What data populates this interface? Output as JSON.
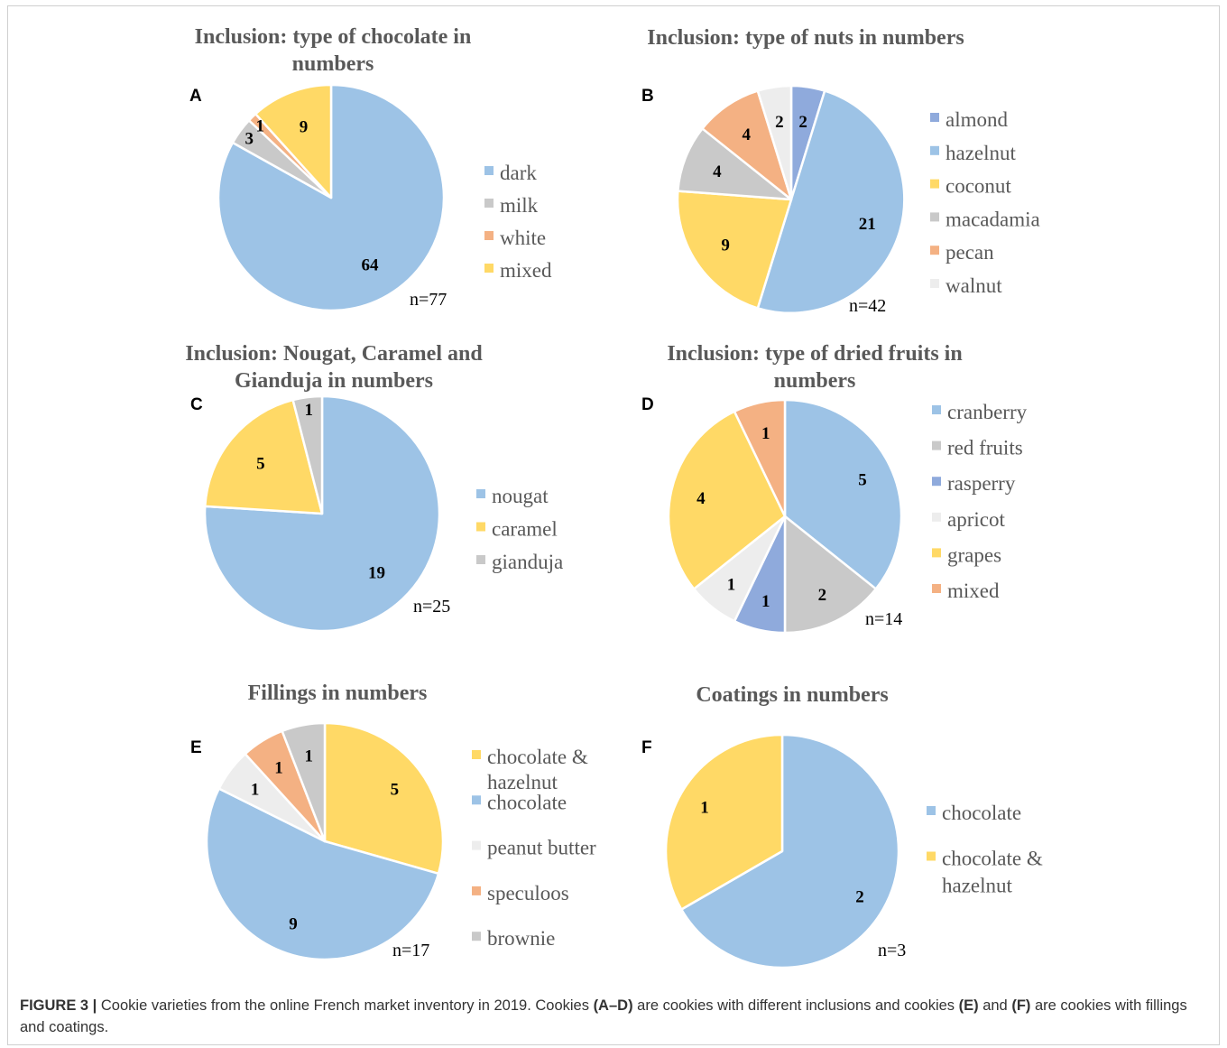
{
  "caption": {
    "label": "FIGURE 3 |",
    "text_1": " Cookie varieties from the online French market inventory in 2019. Cookies ",
    "ref_1": "(A–D)",
    "text_2": " are cookies with different inclusions and cookies ",
    "ref_2": "(E)",
    "text_3": " and ",
    "ref_3": "(F)",
    "text_4": " are cookies with fillings and coatings."
  },
  "colors": {
    "light_blue": "#9DC3E6",
    "grey": "#C9C9C9",
    "orange": "#F4B183",
    "yellow": "#FFD966",
    "blue": "#8FAADC",
    "white_grey": "#EDEDED",
    "title": "#595959"
  },
  "chart_data": [
    {
      "panel": "A",
      "type": "pie",
      "title_lines": [
        "Inclusion: type of chocolate in",
        "numbers"
      ],
      "n_label": "n=77",
      "slices": [
        {
          "label": "dark",
          "value": 64,
          "color": "#9DC3E6"
        },
        {
          "label": "milk",
          "value": 3,
          "color": "#C9C9C9"
        },
        {
          "label": "white",
          "value": 1,
          "color": "#F4B183"
        },
        {
          "label": "mixed",
          "value": 9,
          "color": "#FFD966"
        }
      ],
      "legend": [
        {
          "label": "dark",
          "color": "#9DC3E6"
        },
        {
          "label": "milk",
          "color": "#C9C9C9"
        },
        {
          "label": "white",
          "color": "#F4B183"
        },
        {
          "label": "mixed",
          "color": "#FFD966"
        }
      ]
    },
    {
      "panel": "B",
      "type": "pie",
      "title_lines": [
        "Inclusion: type of nuts in numbers"
      ],
      "n_label": "n=42",
      "slices": [
        {
          "label": "almond",
          "value": 2,
          "color": "#8FAADC"
        },
        {
          "label": "hazelnut",
          "value": 21,
          "color": "#9DC3E6"
        },
        {
          "label": "coconut",
          "value": 9,
          "color": "#FFD966"
        },
        {
          "label": "macadamia",
          "value": 4,
          "color": "#C9C9C9"
        },
        {
          "label": "pecan",
          "value": 4,
          "color": "#F4B183"
        },
        {
          "label": "walnut",
          "value": 2,
          "color": "#EDEDED"
        }
      ],
      "legend": [
        {
          "label": "almond",
          "color": "#8FAADC"
        },
        {
          "label": "hazelnut",
          "color": "#9DC3E6"
        },
        {
          "label": "coconut",
          "color": "#FFD966"
        },
        {
          "label": "macadamia",
          "color": "#C9C9C9"
        },
        {
          "label": "pecan",
          "color": "#F4B183"
        },
        {
          "label": "walnut",
          "color": "#EDEDED"
        }
      ]
    },
    {
      "panel": "C",
      "type": "pie",
      "title_lines": [
        "Inclusion: Nougat, Caramel and",
        "Gianduja in numbers"
      ],
      "n_label": "n=25",
      "slices": [
        {
          "label": "nougat",
          "value": 19,
          "color": "#9DC3E6"
        },
        {
          "label": "caramel",
          "value": 5,
          "color": "#FFD966"
        },
        {
          "label": "gianduja",
          "value": 1,
          "color": "#C9C9C9"
        }
      ],
      "legend": [
        {
          "label": "nougat",
          "color": "#9DC3E6"
        },
        {
          "label": "caramel",
          "color": "#FFD966"
        },
        {
          "label": "gianduja",
          "color": "#C9C9C9"
        }
      ]
    },
    {
      "panel": "D",
      "type": "pie",
      "title_lines": [
        "Inclusion: type of dried fruits in",
        "numbers"
      ],
      "n_label": "n=14",
      "slices": [
        {
          "label": "cranberry",
          "value": 5,
          "color": "#9DC3E6"
        },
        {
          "label": "red fruits",
          "value": 2,
          "color": "#C9C9C9"
        },
        {
          "label": "rasperry",
          "value": 1,
          "color": "#8FAADC"
        },
        {
          "label": "apricot",
          "value": 1,
          "color": "#EDEDED"
        },
        {
          "label": "grapes",
          "value": 4,
          "color": "#FFD966"
        },
        {
          "label": "mixed",
          "value": 1,
          "color": "#F4B183"
        }
      ],
      "legend": [
        {
          "label": "cranberry",
          "color": "#9DC3E6"
        },
        {
          "label": "red fruits",
          "color": "#C9C9C9"
        },
        {
          "label": "rasperry",
          "color": "#8FAADC"
        },
        {
          "label": "apricot",
          "color": "#EDEDED"
        },
        {
          "label": "grapes",
          "color": "#FFD966"
        },
        {
          "label": "mixed",
          "color": "#F4B183"
        }
      ]
    },
    {
      "panel": "E",
      "type": "pie",
      "title_lines": [
        "Fillings in numbers"
      ],
      "n_label": "n=17",
      "slices": [
        {
          "label": "chocolate & hazelnut",
          "value": 5,
          "color": "#FFD966"
        },
        {
          "label": "chocolate",
          "value": 9,
          "color": "#9DC3E6"
        },
        {
          "label": "peanut butter",
          "value": 1,
          "color": "#EDEDED"
        },
        {
          "label": "speculoos",
          "value": 1,
          "color": "#F4B183"
        },
        {
          "label": "brownie",
          "value": 1,
          "color": "#C9C9C9"
        }
      ],
      "legend": [
        {
          "label": "chocolate &",
          "label_2": "hazelnut",
          "color": "#FFD966"
        },
        {
          "label": "chocolate",
          "color": "#9DC3E6"
        },
        {
          "label": "peanut butter",
          "color": "#EDEDED"
        },
        {
          "label": "speculoos",
          "color": "#F4B183"
        },
        {
          "label": "brownie",
          "color": "#C9C9C9"
        }
      ]
    },
    {
      "panel": "F",
      "type": "pie",
      "title_lines": [
        "Coatings in numbers"
      ],
      "n_label": "n=3",
      "slices": [
        {
          "label": "chocolate",
          "value": 2,
          "color": "#9DC3E6"
        },
        {
          "label": "chocolate & hazelnut",
          "value": 1,
          "color": "#FFD966"
        }
      ],
      "legend": [
        {
          "label": "chocolate",
          "color": "#9DC3E6"
        },
        {
          "label": "chocolate &",
          "label_2": "hazelnut",
          "color": "#FFD966"
        }
      ]
    }
  ]
}
